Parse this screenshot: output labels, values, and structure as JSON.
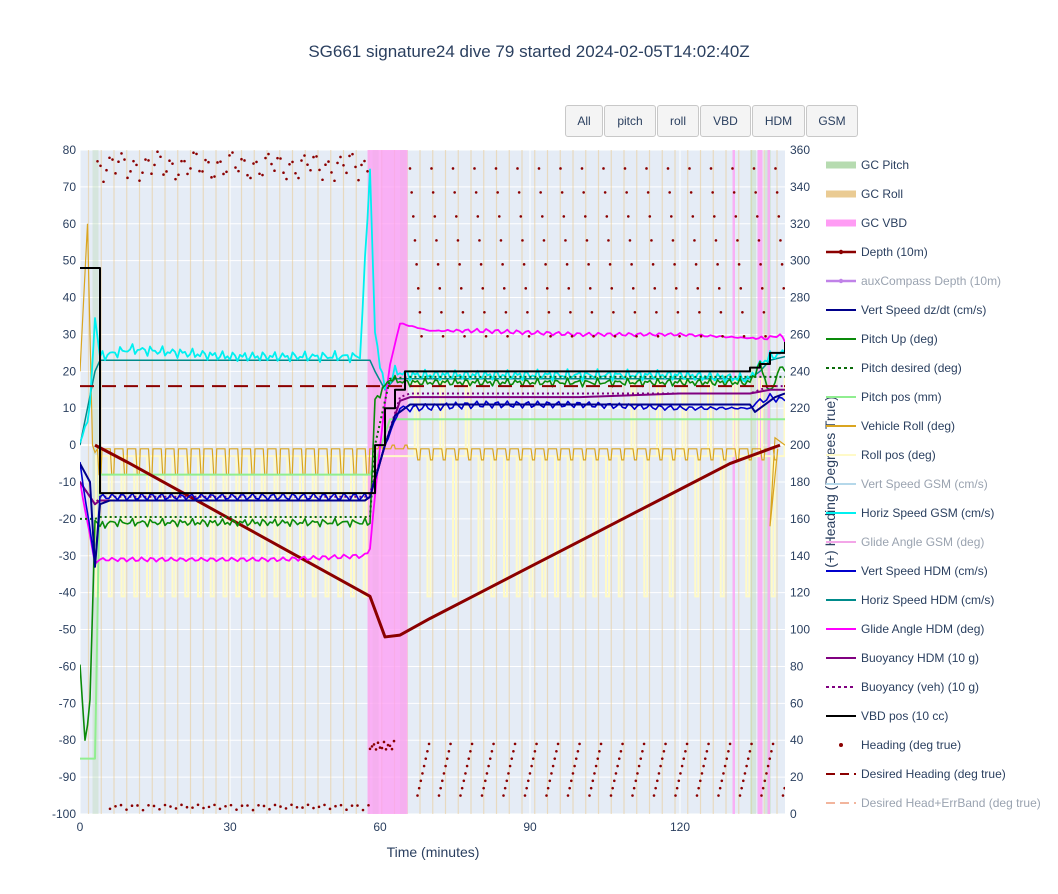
{
  "title": "SG661 signature24 dive 79 started 2024-02-05T14:02:40Z",
  "buttons": [
    "All",
    "pitch",
    "roll",
    "VBD",
    "HDM",
    "GSM"
  ],
  "chart_data": {
    "type": "line",
    "xlabel": "Time (minutes)",
    "ylabel": "",
    "y2label": "(+) Heading (Degrees True)",
    "xlim": [
      0,
      141
    ],
    "ylim": [
      -100,
      80
    ],
    "y2lim": [
      0,
      360
    ],
    "xticks": [
      0,
      30,
      60,
      90,
      120
    ],
    "yticks": [
      80,
      70,
      60,
      50,
      40,
      30,
      20,
      10,
      0,
      -10,
      -20,
      -30,
      -40,
      -50,
      -60,
      -70,
      -80,
      -90,
      -100
    ],
    "y2ticks": [
      360,
      340,
      320,
      300,
      280,
      260,
      240,
      220,
      200,
      180,
      160,
      140,
      120,
      100,
      80,
      60,
      40,
      20,
      0
    ],
    "legend_position": "right",
    "series": [
      {
        "name": "GC Pitch",
        "color": "#b6dbb0",
        "kind": "band",
        "faded": false
      },
      {
        "name": "GC Roll",
        "color": "#eacb93",
        "kind": "band",
        "faded": false
      },
      {
        "name": "GC VBD",
        "color": "#ff9cf4",
        "kind": "band",
        "faded": false,
        "x": [
          [
            57.5,
            65.5
          ],
          [
            130.5,
            131
          ],
          [
            135.5,
            136.5
          ],
          [
            137.5,
            138
          ]
        ]
      },
      {
        "name": "Depth (10m)",
        "color": "#8b0000",
        "kind": "line-marker",
        "width": 3,
        "faded": false,
        "x": [
          3,
          10,
          20,
          30,
          40,
          50,
          58,
          61,
          64,
          70,
          80,
          90,
          100,
          110,
          120,
          130,
          140
        ],
        "y": [
          0,
          -5,
          -12.5,
          -20,
          -27.5,
          -35,
          -41,
          -52,
          -51.5,
          -47,
          -40,
          -33,
          -26,
          -19,
          -12,
          -5,
          0
        ]
      },
      {
        "name": "auxCompass Depth (10m)",
        "color": "#c082e8",
        "kind": "line-marker",
        "faded": true
      },
      {
        "name": "Vert Speed dz/dt (cm/s)",
        "color": "#00008b",
        "kind": "line",
        "faded": false,
        "x": [
          0,
          2,
          3,
          4,
          6,
          20,
          40,
          57,
          58,
          61,
          63,
          66,
          80,
          100,
          120,
          134,
          135,
          137,
          139,
          141
        ],
        "y": [
          -5,
          -10,
          -33,
          -16,
          -15,
          -15,
          -15,
          -15,
          -14,
          0,
          8,
          11,
          11,
          11,
          11,
          11,
          9,
          11,
          13,
          14
        ]
      },
      {
        "name": "Pitch Up (deg)",
        "color": "#0a8a0a",
        "kind": "line",
        "faded": false,
        "x": [
          0,
          1,
          2,
          3,
          4,
          6,
          20,
          40,
          58,
          59,
          62,
          65,
          80,
          100,
          120,
          134,
          136,
          138,
          140,
          141
        ],
        "y": [
          -60,
          -80,
          -70,
          -20,
          -22,
          -21,
          -21,
          -21,
          -21,
          12,
          18,
          17,
          17,
          17,
          17,
          17,
          22,
          14,
          21,
          20
        ]
      },
      {
        "name": "Pitch desired (deg)",
        "color": "#0a6b0a",
        "kind": "dot",
        "faded": false,
        "x": [
          0,
          3,
          4,
          58,
          59,
          62,
          66,
          141
        ],
        "y": [
          -20,
          -20,
          -19.5,
          -19.5,
          0,
          18,
          18.5,
          18.5
        ]
      },
      {
        "name": "Pitch pos (mm)",
        "color": "#90ee90",
        "kind": "line",
        "faded": false,
        "x": [
          0,
          3,
          4,
          58,
          59,
          62,
          66,
          141
        ],
        "y": [
          -85,
          -85,
          -8,
          -8,
          -5,
          7,
          7,
          7
        ]
      },
      {
        "name": "Vehicle Roll (deg)",
        "color": "#daa520",
        "kind": "line",
        "faded": false
      },
      {
        "name": "Roll pos (deg)",
        "color": "#fffac8",
        "kind": "line",
        "faded": false
      },
      {
        "name": "Vert Speed GSM (cm/s)",
        "color": "#b5d8ea",
        "kind": "line",
        "faded": true
      },
      {
        "name": "Horiz Speed GSM (cm/s)",
        "color": "#00f0f0",
        "kind": "line",
        "faded": false,
        "x": [
          0,
          2,
          3,
          4,
          10,
          20,
          30,
          40,
          50,
          56,
          58,
          59,
          61,
          63,
          66,
          80,
          100,
          120,
          134,
          136,
          138,
          141
        ],
        "y": [
          0,
          10,
          35,
          24,
          26,
          25,
          24,
          24,
          24,
          24,
          75,
          30,
          15,
          20,
          19,
          19,
          19,
          19,
          18,
          22,
          24,
          25
        ]
      },
      {
        "name": "Glide Angle GSM (deg)",
        "color": "#f3a6e8",
        "kind": "line",
        "faded": true
      },
      {
        "name": "Vert Speed HDM (cm/s)",
        "color": "#0000cd",
        "kind": "line",
        "faded": false,
        "x": [
          0,
          3,
          4,
          20,
          40,
          57,
          58,
          61,
          64,
          66,
          80,
          100,
          120,
          134,
          136,
          138,
          141
        ],
        "y": [
          -5,
          -32,
          -14,
          -14,
          -14,
          -14,
          -14,
          0,
          10,
          10,
          11,
          11,
          10,
          10,
          12,
          13,
          12
        ]
      },
      {
        "name": "Horiz Speed HDM (cm/s)",
        "color": "#008b8b",
        "kind": "line",
        "faded": false,
        "x": [
          0,
          3,
          4,
          20,
          40,
          58,
          59,
          61,
          63,
          66,
          80,
          100,
          120,
          134,
          136,
          138,
          141
        ],
        "y": [
          0,
          20,
          23,
          23,
          23,
          23,
          20,
          15,
          18,
          18,
          18,
          18,
          18,
          18,
          20,
          23,
          24
        ]
      },
      {
        "name": "Glide Angle HDM (deg)",
        "color": "#ff00ff",
        "kind": "line",
        "faded": false,
        "x": [
          0,
          3,
          4,
          20,
          40,
          57,
          58,
          60,
          62,
          64,
          70,
          80,
          100,
          120,
          134,
          138,
          140,
          141
        ],
        "y": [
          -10,
          -32,
          -31,
          -31,
          -31,
          -30,
          -28,
          0,
          22,
          33,
          31,
          31,
          30,
          30,
          29,
          29,
          30,
          28
        ]
      },
      {
        "name": "Buoyancy HDM (10 g)",
        "color": "#800080",
        "kind": "line",
        "faded": false,
        "x": [
          0,
          3,
          4,
          20,
          40,
          57,
          58,
          61,
          64,
          66,
          80,
          100,
          120,
          134,
          138,
          141
        ],
        "y": [
          -10,
          -16,
          -15,
          -15,
          -15,
          -15,
          -14,
          0,
          12,
          13,
          13,
          13,
          14,
          14,
          15,
          15
        ]
      },
      {
        "name": "Buoyancy (veh) (10 g)",
        "color": "#800080",
        "kind": "dot",
        "faded": false,
        "x": [
          0,
          3,
          4,
          20,
          40,
          57,
          58,
          61,
          64,
          66,
          80,
          100,
          120,
          134,
          138,
          141
        ],
        "y": [
          -10,
          -16,
          -14,
          -14,
          -14,
          -14,
          -13,
          0,
          13,
          14,
          14,
          14,
          14,
          14,
          16,
          16
        ]
      },
      {
        "name": "VBD pos (10 cc)",
        "color": "#000000",
        "kind": "step",
        "faded": false,
        "x": [
          0,
          3,
          4,
          58,
          59,
          61,
          63,
          65,
          132,
          134,
          136,
          138,
          141
        ],
        "y": [
          48,
          48,
          -13,
          -13,
          0,
          10,
          15,
          20,
          20,
          21,
          22,
          25,
          28
        ]
      },
      {
        "name": "Heading (deg true)",
        "color": "#8b0000",
        "kind": "marker",
        "faded": false
      },
      {
        "name": "Desired Heading (deg true)",
        "color": "#8b0000",
        "kind": "dash",
        "faded": false,
        "x": [
          0,
          141
        ],
        "y2": [
          232,
          232
        ]
      },
      {
        "name": "Desired Head+ErrBand (deg true)",
        "color": "#f2b59d",
        "kind": "dash",
        "faded": true
      }
    ]
  }
}
